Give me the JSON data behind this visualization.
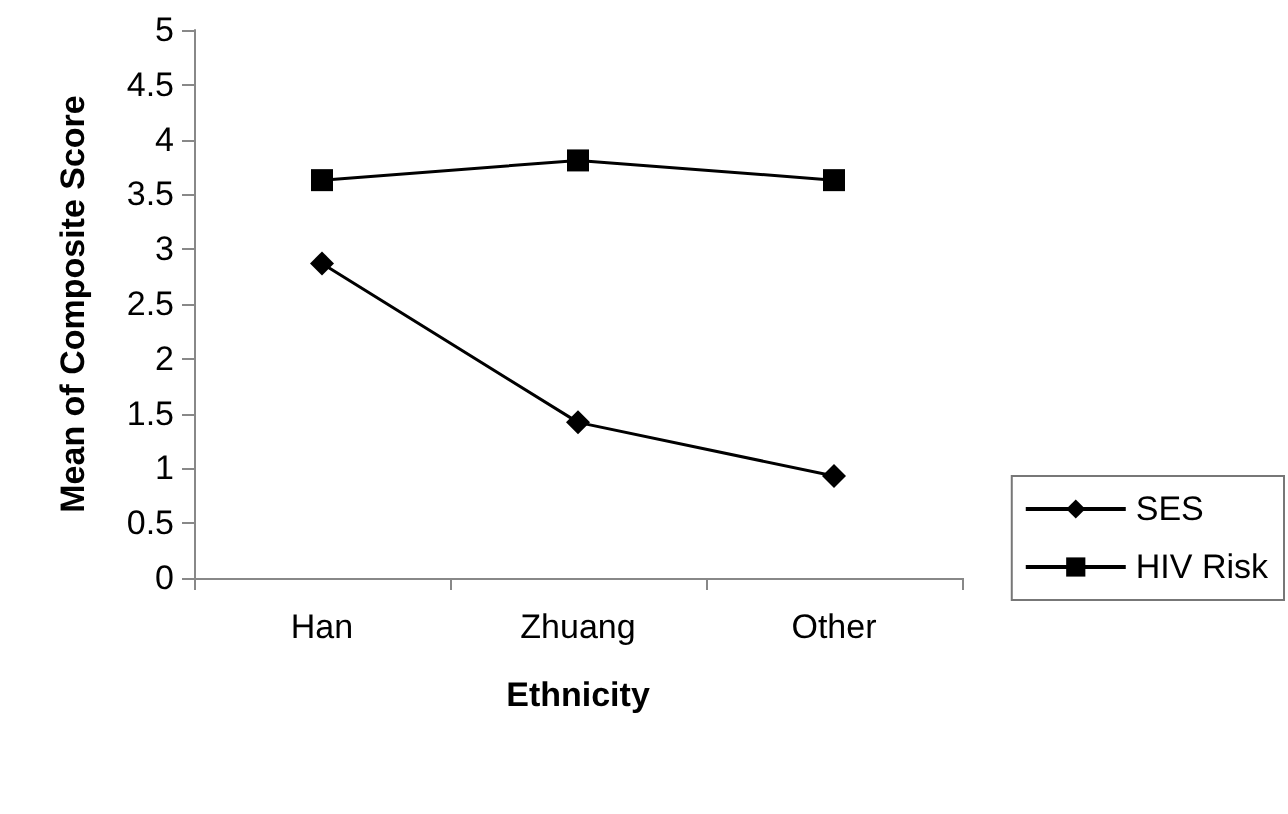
{
  "chart_data": {
    "type": "line",
    "xlabel": "Ethnicity",
    "ylabel": "Mean of Composite Score",
    "categories": [
      "Han",
      "Zhuang",
      "Other"
    ],
    "series": [
      {
        "name": "SES",
        "color": "#000000",
        "marker": "diamond",
        "values": [
          2.87,
          1.42,
          0.93
        ]
      },
      {
        "name": "HIV Risk",
        "color": "#000000",
        "marker": "square",
        "values": [
          3.63,
          3.81,
          3.63
        ]
      }
    ],
    "ylim": [
      0,
      5
    ],
    "yticks": [
      0,
      0.5,
      1,
      1.5,
      2,
      2.5,
      3,
      3.5,
      4,
      4.5,
      5
    ],
    "grid": false,
    "legend": "right",
    "line_style": "solid"
  }
}
